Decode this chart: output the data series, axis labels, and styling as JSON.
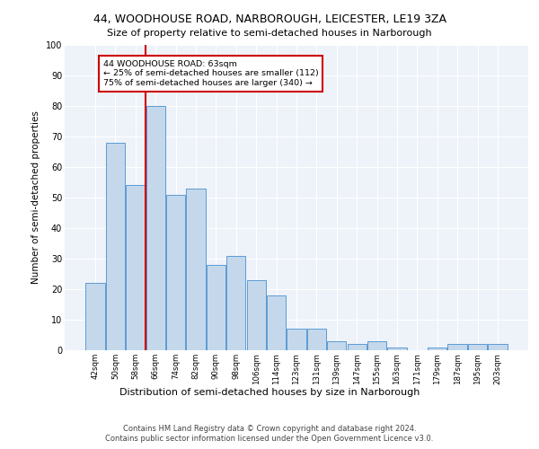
{
  "title1": "44, WOODHOUSE ROAD, NARBOROUGH, LEICESTER, LE19 3ZA",
  "title2": "Size of property relative to semi-detached houses in Narborough",
  "xlabel": "Distribution of semi-detached houses by size in Narborough",
  "ylabel": "Number of semi-detached properties",
  "categories": [
    "42sqm",
    "50sqm",
    "58sqm",
    "66sqm",
    "74sqm",
    "82sqm",
    "90sqm",
    "98sqm",
    "106sqm",
    "114sqm",
    "123sqm",
    "131sqm",
    "139sqm",
    "147sqm",
    "155sqm",
    "163sqm",
    "171sqm",
    "179sqm",
    "187sqm",
    "195sqm",
    "203sqm"
  ],
  "values": [
    22,
    68,
    54,
    80,
    51,
    53,
    28,
    31,
    23,
    18,
    7,
    7,
    3,
    2,
    3,
    1,
    0,
    1,
    2,
    2,
    2
  ],
  "bar_color": "#c5d8eb",
  "bar_edge_color": "#5b9bd5",
  "vline_x": 2.5,
  "vline_color": "#cc0000",
  "annotation_text": "44 WOODHOUSE ROAD: 63sqm\n← 25% of semi-detached houses are smaller (112)\n75% of semi-detached houses are larger (340) →",
  "annotation_box_color": "#ffffff",
  "annotation_box_edge": "#cc0000",
  "ylim": [
    0,
    100
  ],
  "yticks": [
    0,
    10,
    20,
    30,
    40,
    50,
    60,
    70,
    80,
    90,
    100
  ],
  "background_color": "#eef2f9",
  "footer1": "Contains HM Land Registry data © Crown copyright and database right 2024.",
  "footer2": "Contains public sector information licensed under the Open Government Licence v3.0."
}
